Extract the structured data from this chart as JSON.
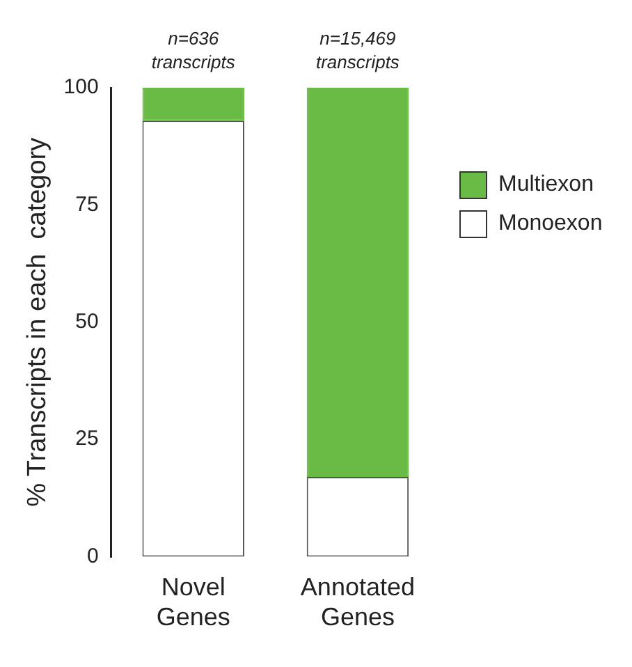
{
  "chart_data": {
    "type": "bar",
    "stacked": true,
    "ylabel": "% Transcripts in each  category",
    "categories": [
      "Novel Genes",
      "Annotated Genes"
    ],
    "series": [
      {
        "name": "Monoexon",
        "color": "#ffffff",
        "values": [
          93,
          17
        ]
      },
      {
        "name": "Multiexon",
        "color": "#6abb45",
        "values": [
          7,
          83
        ]
      }
    ],
    "ylim": [
      0,
      100
    ],
    "yticks": [
      0,
      25,
      50,
      75,
      100
    ],
    "grid": false,
    "legend": "right",
    "annotations": [
      {
        "text": "n=636 transcripts",
        "x": "Novel Genes",
        "y": 100
      },
      {
        "text": "n=15,469 transcripts",
        "x": "Annotated Genes",
        "y": 100
      }
    ]
  }
}
